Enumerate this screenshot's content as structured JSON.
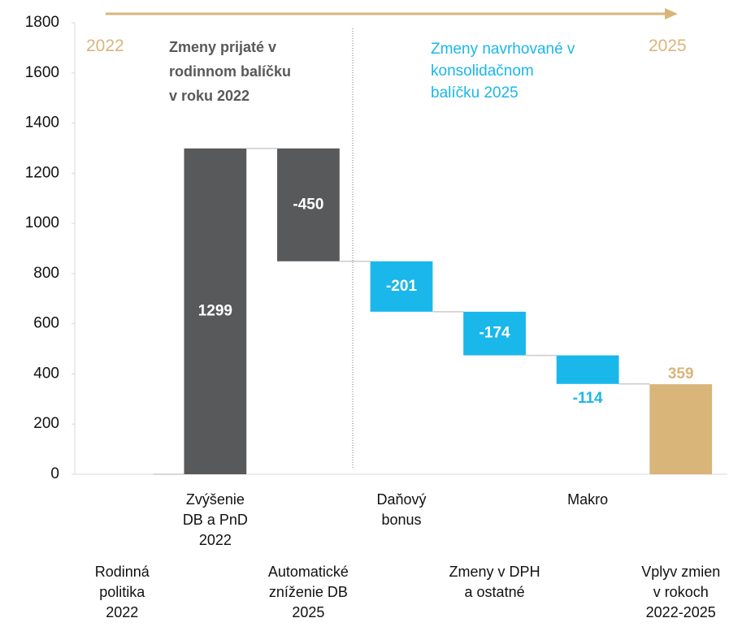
{
  "chart_data": {
    "type": "waterfall",
    "categories": [
      "Rodinná\npolitika\n2022",
      "Zvýšenie\nDB a PnD\n2022",
      "Automatické\nzníženie DB\n2025",
      "Daňový\nbonus",
      "Zmeny v DPH\na ostatné",
      "Makro",
      "Vplyv zmien\nv rokoch\n2022-2025"
    ],
    "values": [
      0,
      1299,
      -450,
      -201,
      -174,
      -114,
      359
    ],
    "is_total": [
      true,
      false,
      false,
      false,
      false,
      false,
      true
    ],
    "colors": [
      "#58595b",
      "#58595b",
      "#58595b",
      "#1ab7ea",
      "#1ab7ea",
      "#1ab7ea",
      "#d9b57a"
    ],
    "ylim": [
      0,
      1800
    ],
    "yticks": [
      0,
      200,
      400,
      600,
      800,
      1000,
      1200,
      1400,
      1600,
      1800
    ],
    "annotations": {
      "start_year": "2022",
      "end_year": "2025",
      "adopted": "Zmeny prijaté v\nrodinnom balíčku\nv roku 2022",
      "proposed": "Zmeny navrhované v\nkonsolidačnom\nbalíčku 2025"
    }
  }
}
